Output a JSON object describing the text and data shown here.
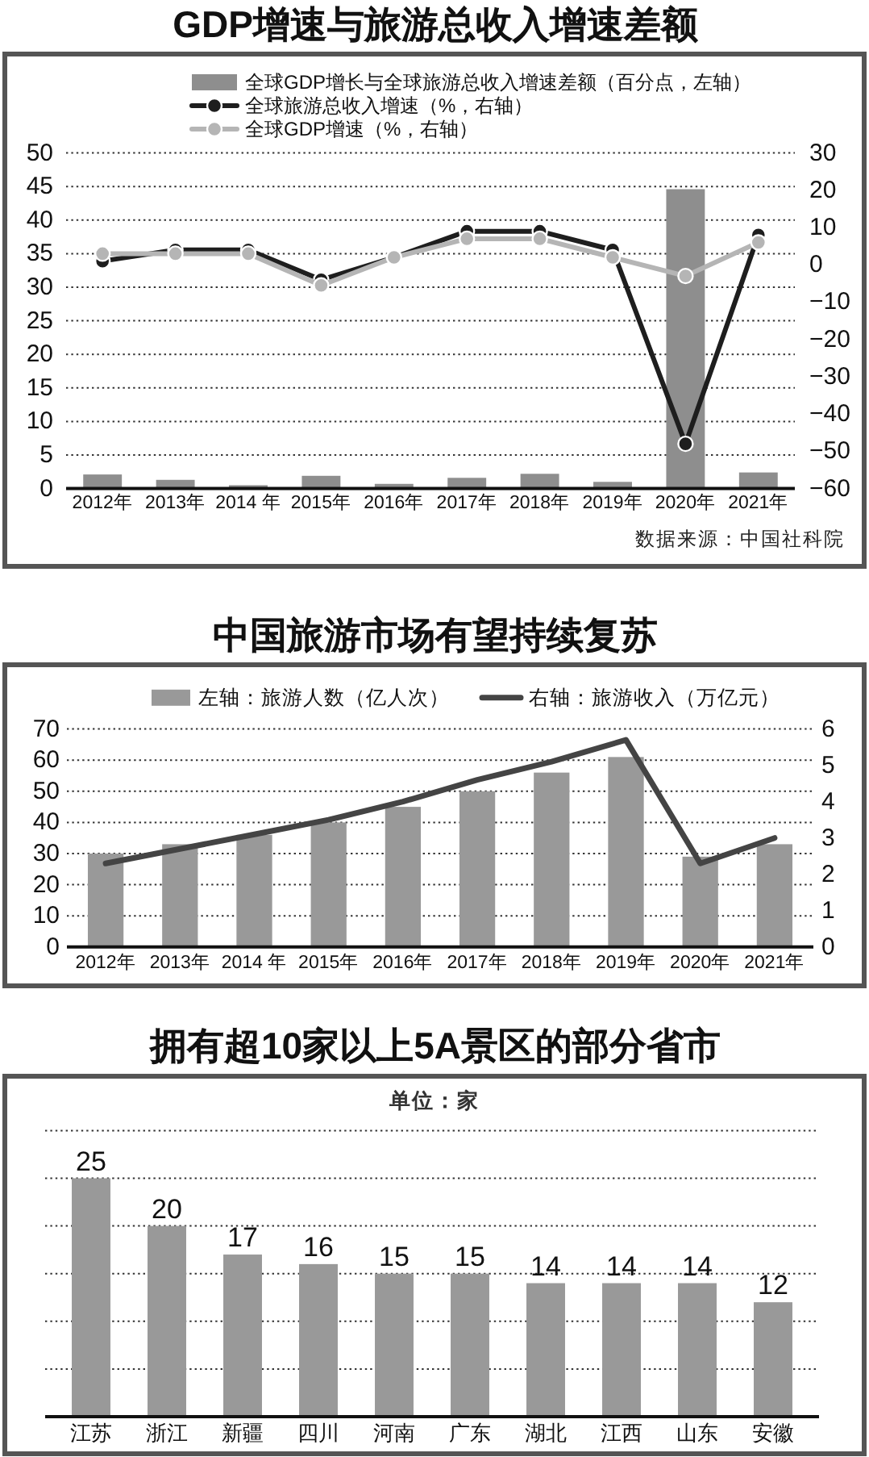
{
  "chart_data": [
    {
      "type": "bar",
      "title": "GDP增速与旅游总收入增速差额",
      "categories": [
        "2012年",
        "2013年",
        "2014 年",
        "2015年",
        "2016年",
        "2017年",
        "2018年",
        "2019年",
        "2020年",
        "2021年"
      ],
      "series": [
        {
          "name": "全球GDP增长与全球旅游总收入增速差额（百分点，左轴）",
          "type": "bar",
          "color": "#8e8e8e",
          "values": [
            2.1,
            1.3,
            0.5,
            1.9,
            0.7,
            1.6,
            2.2,
            1.0,
            44.6,
            2.4
          ]
        },
        {
          "name": "全球旅游总收入增速（%，右轴）",
          "type": "line",
          "axis": "y2",
          "color": "#1e1e1e",
          "values": [
            1,
            4,
            4,
            -4,
            2,
            9,
            9,
            4,
            -48,
            8
          ]
        },
        {
          "name": "全球GDP增速（%，右轴）",
          "type": "line",
          "axis": "y2",
          "color": "#b5b5b5",
          "values": [
            3,
            3,
            3,
            -5.5,
            2,
            7,
            7,
            2,
            -3,
            6
          ]
        }
      ],
      "ylim": [
        0,
        50
      ],
      "yticks": [
        0,
        5,
        10,
        15,
        20,
        25,
        30,
        35,
        40,
        45,
        50
      ],
      "y2lim": [
        -60,
        30
      ],
      "y2ticks": [
        -60,
        -50,
        -40,
        -30,
        -20,
        -10,
        0,
        10,
        20,
        30
      ],
      "grid": "y",
      "legend": "top",
      "marker": "circle",
      "annotations": [
        "数据来源：中国社科院"
      ]
    },
    {
      "type": "bar",
      "title": "中国旅游市场有望持续复苏",
      "categories": [
        "2012年",
        "2013年",
        "2014 年",
        "2015年",
        "2016年",
        "2017年",
        "2018年",
        "2019年",
        "2020年",
        "2021年"
      ],
      "series": [
        {
          "name": "左轴：旅游人数（亿人次）",
          "type": "bar",
          "color": "#999999",
          "values": [
            30,
            33,
            36,
            40,
            45,
            50,
            56,
            61,
            29,
            33
          ]
        },
        {
          "name": "右轴：旅游收入（万亿元）",
          "type": "line",
          "axis": "y2",
          "color": "#444444",
          "values": [
            2.3,
            2.7,
            3.1,
            3.5,
            4.0,
            4.6,
            5.1,
            5.7,
            2.3,
            3.0
          ]
        }
      ],
      "ylim": [
        0,
        70
      ],
      "yticks": [
        0,
        10,
        20,
        30,
        40,
        50,
        60,
        70
      ],
      "y2lim": [
        0,
        6
      ],
      "y2ticks": [
        0,
        1,
        2,
        3,
        4,
        5,
        6
      ],
      "grid": "y",
      "legend": "top"
    },
    {
      "type": "bar",
      "title": "拥有超10家以上5A景区的部分省市",
      "subtitle": "单位：家",
      "categories": [
        "江苏",
        "浙江",
        "新疆",
        "四川",
        "河南",
        "广东",
        "湖北",
        "江西",
        "山东",
        "安徽"
      ],
      "values": [
        25,
        20,
        17,
        16,
        15,
        15,
        14,
        14,
        14,
        12
      ],
      "color": "#999999",
      "data_labels": true,
      "ylim": [
        0,
        30
      ],
      "yticks": [
        {
          "value": 0,
          "label": null
        },
        {
          "value": 5,
          "label": null
        },
        {
          "value": 10,
          "label": null
        },
        {
          "value": 15,
          "label": null
        },
        {
          "value": 20,
          "label": null
        },
        {
          "value": 25,
          "label": null
        },
        {
          "value": 30,
          "label": null
        }
      ],
      "grid": "y",
      "tick_labels": "x"
    }
  ]
}
